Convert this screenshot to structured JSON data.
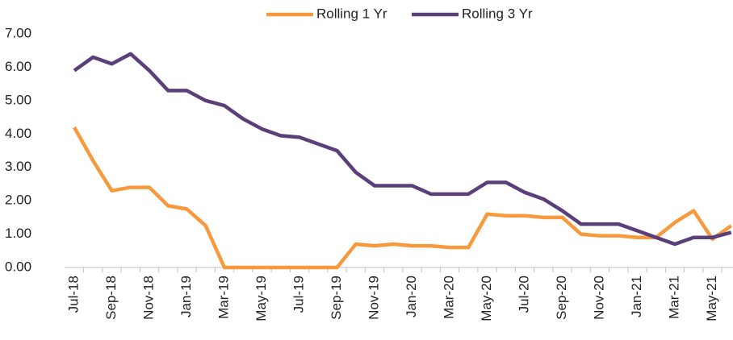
{
  "chart_data": {
    "type": "line",
    "categories": [
      "Jul-18",
      null,
      "Sep-18",
      null,
      "Nov-18",
      null,
      "Jan-19",
      null,
      "Mar-19",
      null,
      "May-19",
      null,
      "Jul-19",
      null,
      "Sep-19",
      null,
      "Nov-19",
      null,
      "Jan-20",
      null,
      "Mar-20",
      null,
      "May-20",
      null,
      "Jul-20",
      null,
      "Sep-20",
      null,
      "Nov-20",
      null,
      "Jan-21",
      null,
      "Mar-21",
      null,
      "May-21",
      null
    ],
    "series": [
      {
        "name": "Rolling 1 Yr",
        "color": "#f79a3e",
        "values": [
          4.2,
          3.2,
          2.3,
          2.4,
          2.4,
          1.85,
          1.75,
          1.25,
          0,
          0,
          0,
          0,
          0,
          0,
          0,
          0.7,
          0.65,
          0.7,
          0.65,
          0.65,
          0.6,
          0.6,
          1.6,
          1.55,
          1.55,
          1.5,
          1.5,
          1.0,
          0.95,
          0.95,
          0.9,
          0.9,
          1.35,
          1.7,
          0.85,
          1.25
        ]
      },
      {
        "name": "Rolling 3 Yr",
        "color": "#5b3f7a",
        "values": [
          5.9,
          6.3,
          6.1,
          6.4,
          5.9,
          5.3,
          5.3,
          5.0,
          4.85,
          4.45,
          4.15,
          3.95,
          3.9,
          3.7,
          3.5,
          2.85,
          2.45,
          2.45,
          2.45,
          2.2,
          2.2,
          2.2,
          2.55,
          2.55,
          2.25,
          2.05,
          1.7,
          1.3,
          1.3,
          1.3,
          1.1,
          0.9,
          0.7,
          0.9,
          0.9,
          1.05
        ]
      }
    ],
    "ylim": [
      0,
      7
    ],
    "yticks": [
      {
        "value": 0,
        "label": "0.00"
      },
      {
        "value": 1,
        "label": "1.00"
      },
      {
        "value": 2,
        "label": "2.00"
      },
      {
        "value": 3,
        "label": "3.00"
      },
      {
        "value": 4,
        "label": "4.00"
      },
      {
        "value": 5,
        "label": "5.00"
      },
      {
        "value": 6,
        "label": "6.00"
      },
      {
        "value": 7,
        "label": "7.00"
      }
    ],
    "legend": "top"
  }
}
